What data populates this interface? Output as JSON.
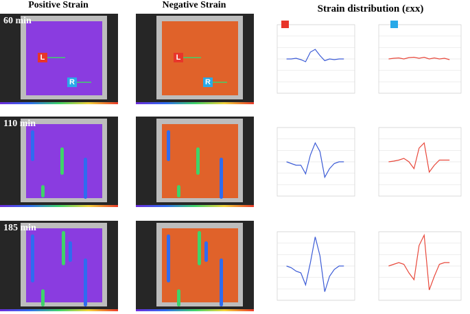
{
  "headers": {
    "positive": "Positive Strain",
    "negative": "Negative Strain",
    "distribution": "Strain distribution (εxx)"
  },
  "markers": {
    "left": "L",
    "right": "R"
  },
  "left_color": "#3b5bd6",
  "right_color": "#e8473a",
  "ylim": [
    -1,
    1
  ],
  "rows": [
    {
      "time": "60 min",
      "left_curve": [
        0,
        0,
        0.02,
        -0.02,
        -0.08,
        0.2,
        0.28,
        0.1,
        -0.05,
        0,
        -0.02,
        0,
        0
      ],
      "right_curve": [
        0,
        0.02,
        0.03,
        0,
        0.04,
        0.05,
        0.02,
        0.05,
        0,
        0.03,
        0,
        0.02,
        -0.02
      ]
    },
    {
      "time": "110 min",
      "left_curve": [
        0,
        -0.05,
        -0.1,
        -0.1,
        -0.35,
        0.2,
        0.55,
        0.3,
        -0.45,
        -0.2,
        -0.05,
        0,
        0
      ],
      "right_curve": [
        0,
        0.02,
        0.05,
        0.1,
        0,
        -0.2,
        0.4,
        0.55,
        -0.3,
        -0.1,
        0.05,
        0.05,
        0.05
      ]
    },
    {
      "time": "185 min",
      "left_curve": [
        0,
        -0.05,
        -0.15,
        -0.2,
        -0.55,
        0.1,
        0.85,
        0.3,
        -0.75,
        -0.3,
        -0.1,
        0,
        0
      ],
      "right_curve": [
        0,
        0.05,
        0.1,
        0.05,
        -0.2,
        -0.4,
        0.6,
        0.9,
        -0.7,
        -0.3,
        0.05,
        0.1,
        0.1
      ]
    }
  ]
}
